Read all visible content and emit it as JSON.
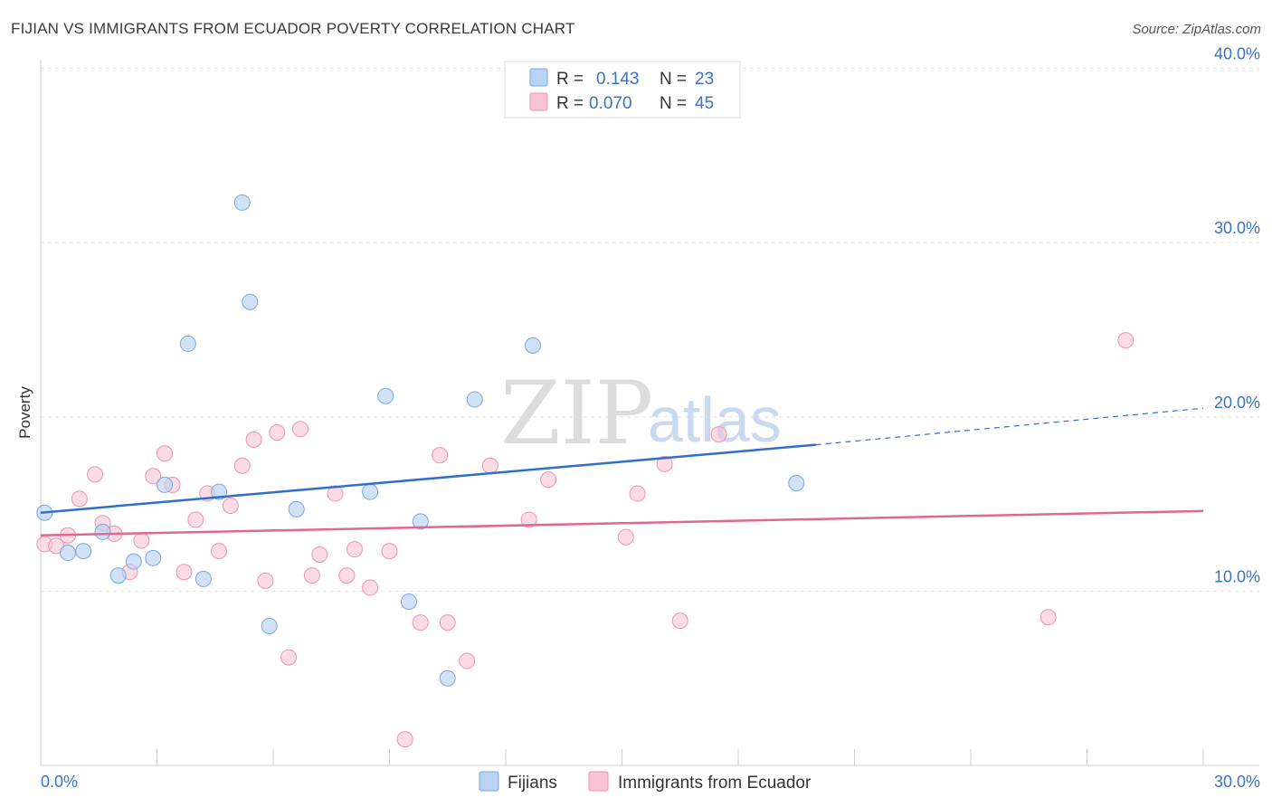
{
  "title": "FIJIAN VS IMMIGRANTS FROM ECUADOR POVERTY CORRELATION CHART",
  "source": "Source: ZipAtlas.com",
  "chart_data": {
    "type": "scatter",
    "ylabel": "Poverty",
    "xlim": [
      0,
      30
    ],
    "ylim": [
      0,
      40.5
    ],
    "x_tick_labels": [
      "0.0%",
      "30.0%"
    ],
    "y_ticks": [
      10,
      20,
      30,
      40
    ],
    "y_tick_labels": [
      "10.0%",
      "20.0%",
      "30.0%",
      "40.0%"
    ],
    "grid": true,
    "legend": {
      "position": "top-center",
      "entries": [
        {
          "r_label": "R =",
          "r_value": "0.143",
          "n_label": "N =",
          "n_value": "23"
        },
        {
          "r_label": "R =",
          "r_value": "0.070",
          "n_label": "N =",
          "n_value": "45"
        }
      ]
    },
    "bottom_legend": [
      "Fijians",
      "Immigrants from Ecuador"
    ],
    "watermark": {
      "zip": "ZIP",
      "atlas": "atlas"
    },
    "colors": {
      "fijians_fill": "#b9d3f3",
      "fijians_stroke": "#7aa7de",
      "fijians_line": "#2f6fcc",
      "ecuador_fill": "#f8c4d3",
      "ecuador_stroke": "#ec93b0",
      "ecuador_line": "#e06792"
    },
    "series": [
      {
        "name": "Fijians",
        "points": [
          [
            0.1,
            14.5
          ],
          [
            0.7,
            12.2
          ],
          [
            1.1,
            12.3
          ],
          [
            1.6,
            13.4
          ],
          [
            2.0,
            10.9
          ],
          [
            2.4,
            11.7
          ],
          [
            2.9,
            11.9
          ],
          [
            3.2,
            16.1
          ],
          [
            3.8,
            24.2
          ],
          [
            4.2,
            10.7
          ],
          [
            4.6,
            15.7
          ],
          [
            5.2,
            32.3
          ],
          [
            5.4,
            26.6
          ],
          [
            5.9,
            8.0
          ],
          [
            6.6,
            14.7
          ],
          [
            8.5,
            15.7
          ],
          [
            8.9,
            21.2
          ],
          [
            9.5,
            9.4
          ],
          [
            9.8,
            14.0
          ],
          [
            10.5,
            5.0
          ],
          [
            11.2,
            21.0
          ],
          [
            12.7,
            24.1
          ],
          [
            19.5,
            16.2
          ]
        ],
        "trend": {
          "x0": 0,
          "y0": 14.5,
          "x1": 20.0,
          "y1": 18.4,
          "x_end": 30,
          "y_end": 20.5
        }
      },
      {
        "name": "Immigrants from Ecuador",
        "points": [
          [
            0.1,
            12.7
          ],
          [
            0.4,
            12.6
          ],
          [
            0.7,
            13.2
          ],
          [
            1.0,
            15.3
          ],
          [
            1.4,
            16.7
          ],
          [
            1.6,
            13.9
          ],
          [
            1.9,
            13.3
          ],
          [
            2.3,
            11.1
          ],
          [
            2.6,
            12.9
          ],
          [
            2.9,
            16.6
          ],
          [
            3.2,
            17.9
          ],
          [
            3.4,
            16.1
          ],
          [
            3.7,
            11.1
          ],
          [
            4.0,
            14.1
          ],
          [
            4.3,
            15.6
          ],
          [
            4.6,
            12.3
          ],
          [
            4.9,
            14.9
          ],
          [
            5.2,
            17.2
          ],
          [
            5.5,
            18.7
          ],
          [
            5.8,
            10.6
          ],
          [
            6.1,
            19.1
          ],
          [
            6.4,
            6.2
          ],
          [
            6.7,
            19.3
          ],
          [
            7.0,
            10.9
          ],
          [
            7.2,
            12.1
          ],
          [
            7.6,
            15.6
          ],
          [
            7.9,
            10.9
          ],
          [
            8.1,
            12.4
          ],
          [
            8.5,
            10.2
          ],
          [
            9.0,
            12.3
          ],
          [
            9.4,
            1.5
          ],
          [
            9.8,
            8.2
          ],
          [
            10.3,
            17.8
          ],
          [
            10.5,
            8.2
          ],
          [
            11.0,
            6.0
          ],
          [
            11.6,
            17.2
          ],
          [
            12.6,
            14.1
          ],
          [
            13.1,
            16.4
          ],
          [
            15.1,
            13.1
          ],
          [
            15.4,
            15.6
          ],
          [
            16.1,
            17.3
          ],
          [
            16.5,
            8.3
          ],
          [
            17.5,
            19.0
          ],
          [
            26.0,
            8.5
          ],
          [
            28.0,
            24.4
          ]
        ],
        "trend": {
          "x0": 0,
          "y0": 13.2,
          "x1": 30,
          "y1": 14.6
        }
      }
    ]
  }
}
